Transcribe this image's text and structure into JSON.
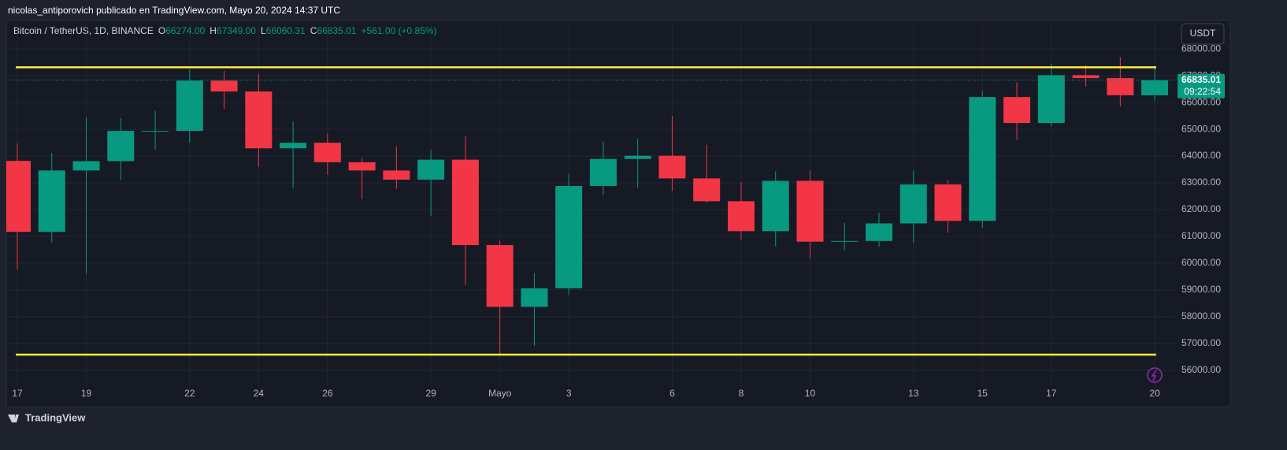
{
  "header": {
    "title": "nicolas_antiporovich publicado en TradingView.com, Mayo 20, 2024 14:37 UTC"
  },
  "chart_data": {
    "type": "candlestick",
    "symbol": "Bitcoin / TetherUS, 1D, BINANCE",
    "ohlc_legend": [
      {
        "key": "O",
        "value": "66274.00"
      },
      {
        "key": "H",
        "value": "67349.00"
      },
      {
        "key": "L",
        "value": "66060.31"
      },
      {
        "key": "C",
        "value": "66835.01"
      }
    ],
    "change": "+561.00 (+0.85%)",
    "currency_button": "USDT",
    "categories": [
      "17",
      null,
      "19",
      null,
      null,
      "22",
      null,
      "24",
      null,
      "26",
      null,
      null,
      "29",
      null,
      "Mayo",
      null,
      "3",
      null,
      null,
      "6",
      null,
      "8",
      null,
      "10",
      null,
      null,
      "13",
      null,
      "15",
      null,
      "17",
      null,
      null,
      "20"
    ],
    "open": [
      63819.99,
      61168.07,
      63461.98,
      63811.63,
      64940.58,
      64941.15,
      66819.32,
      66414,
      64289.59,
      64498.33,
      63770,
      63461.5,
      63118.62,
      63866,
      60672.01,
      58364.97,
      59060.6,
      62882.01,
      63892.03,
      64012,
      63165.18,
      62312.07,
      61193.03,
      63074,
      60799.99,
      60825.99,
      61484,
      62940.09,
      61577.49,
      66206.51,
      65235.21,
      67024,
      66915.2,
      66274
    ],
    "high": [
      64475,
      64125.2,
      65450,
      65419,
      65695.56,
      67232.35,
      67183.01,
      67075.37,
      65297.94,
      64837.99,
      63923.41,
      64370,
      64228.35,
      64734,
      60841.63,
      59625,
      63333,
      64540,
      64646,
      65500,
      64422.41,
      63020.22,
      63429.03,
      63469.13,
      61515,
      61888,
      63450,
      63118.36,
      66444.16,
      66752.01,
      67451.2,
      67400.01,
      67700,
      67349
    ],
    "low": [
      59768.86,
      60775,
      59600.01,
      63100,
      64237.5,
      64500,
      65765.81,
      63589.87,
      62794,
      63297.48,
      62391.24,
      62781,
      61765.53,
      59191.6,
      56552.82,
      56911.84,
      58811.32,
      62541.03,
      62822.17,
      62700,
      62261,
      60888,
      60630,
      60187.12,
      60487.09,
      60610,
      60749.21,
      61142.77,
      61319.47,
      64602.77,
      65106.38,
      66600,
      65857.25,
      66060.31
    ],
    "close": [
      61168.07,
      63461.98,
      63811.63,
      64940.59,
      64941.15,
      66819.32,
      66414,
      64289.59,
      64498.34,
      63770.01,
      63461.51,
      63118.62,
      63866,
      60672,
      58364.97,
      59060.61,
      62882.01,
      63892.04,
      64012,
      63165.19,
      62312.08,
      61193.03,
      63074.01,
      60799.99,
      60825.99,
      61483.99,
      62940.08,
      61577.49,
      66206.5,
      65235.21,
      67024,
      66915.2,
      66274.01,
      66835.01
    ],
    "up_color": "#089981",
    "down_color": "#f23645",
    "levels": [
      67320,
      56580
    ],
    "level_color": "#ffeb3b",
    "last_price_label": "66835.01",
    "countdown": "09:22:54",
    "ylim": [
      55400,
      68950
    ],
    "yticks": [
      {
        "value": 56000,
        "label": "56000.00"
      },
      {
        "value": 57000,
        "label": "57000.00"
      },
      {
        "value": 58000,
        "label": "58000.00"
      },
      {
        "value": 59000,
        "label": "59000.00"
      },
      {
        "value": 60000,
        "label": "60000.00"
      },
      {
        "value": 61000,
        "label": "61000.00"
      },
      {
        "value": 62000,
        "label": "62000.00"
      },
      {
        "value": 63000,
        "label": "63000.00"
      },
      {
        "value": 64000,
        "label": "64000.00"
      },
      {
        "value": 65000,
        "label": "65000.00"
      },
      {
        "value": 66000,
        "label": "66000.00"
      },
      {
        "value": 67000,
        "label": "67000.00"
      },
      {
        "value": 68000,
        "label": "68000.00"
      }
    ],
    "grid": true
  },
  "footer": {
    "brand": "TradingView"
  }
}
